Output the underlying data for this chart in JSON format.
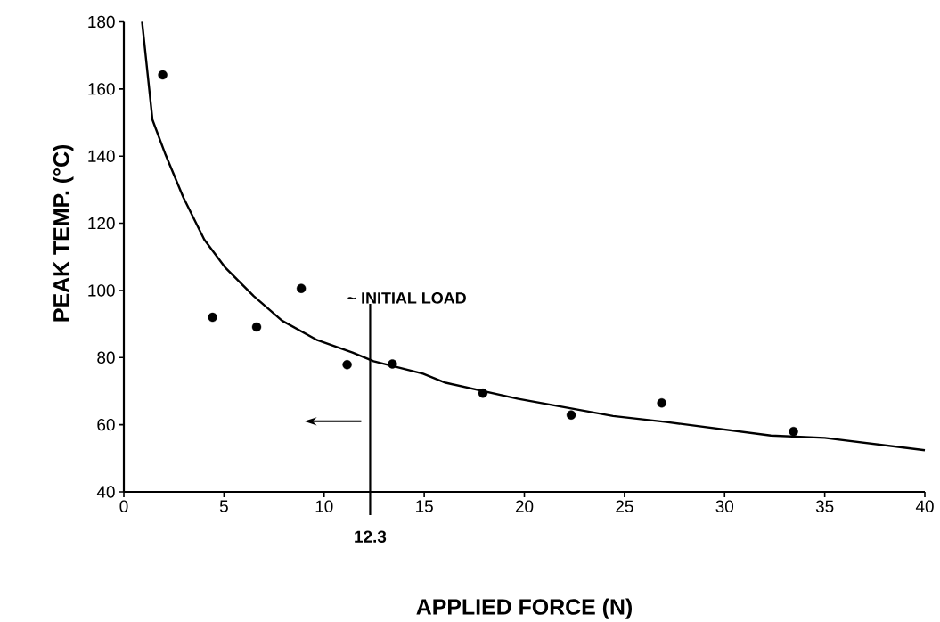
{
  "chart_data": {
    "type": "scatter",
    "xlabel": "APPLIED FORCE (N)",
    "ylabel": "PEAK TEMP. (°C)",
    "xlim": [
      0,
      40
    ],
    "ylim": [
      40,
      180
    ],
    "xticks": [
      0,
      5,
      10,
      15,
      20,
      25,
      30,
      35,
      40
    ],
    "yticks": [
      40,
      60,
      80,
      100,
      120,
      140,
      160,
      180
    ],
    "marker": "circle",
    "grid": false,
    "series": [
      {
        "color": "#000000",
        "x": [
          1.94,
          4.43,
          6.63,
          8.86,
          11.15,
          13.41,
          17.93,
          22.34,
          26.86,
          33.44
        ],
        "values": [
          164.2,
          92.0,
          89.1,
          100.6,
          77.9,
          78.1,
          69.4,
          62.9,
          66.5,
          58.0
        ]
      },
      {
        "type": "line",
        "color": "#000000",
        "marker": "none",
        "line_style": "solid",
        "x": [
          0.91,
          1.43,
          2.09,
          2.97,
          4.02,
          5.08,
          6.49,
          7.9,
          9.66,
          11.42,
          12.47,
          14.94,
          16.07,
          19.7,
          24.43,
          27.1,
          32.31,
          35.0,
          40.0
        ],
        "values": [
          180,
          150.8,
          140.3,
          127.7,
          115.1,
          106.7,
          98.3,
          91.0,
          85.2,
          81.5,
          78.9,
          75.2,
          72.5,
          67.7,
          62.6,
          60.8,
          56.8,
          56.1,
          52.4
        ]
      }
    ],
    "ref_lines": [
      {
        "axis": "x",
        "value": 12.3,
        "label": "12.3",
        "color": "#000000",
        "line_style": "solid"
      }
    ],
    "annotations": [
      "~ INITIAL LOAD"
    ]
  }
}
